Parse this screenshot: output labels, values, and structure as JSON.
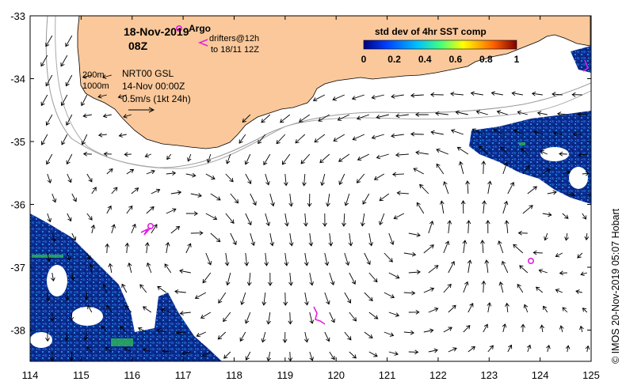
{
  "header": {
    "date": "18-Nov-2019",
    "hour": "08Z"
  },
  "legend": {
    "argo_label": "Argo",
    "drifters_line1": "drifters@12h",
    "drifters_line2": "to 18/11 12Z",
    "argo_color": "#e020e0"
  },
  "contours": {
    "line_200": "200m",
    "line_1000": "1000m"
  },
  "product": {
    "name": "NRT00 GSL",
    "date": "14-Nov 00:00Z",
    "scale": "0.5m/s (1kt 24h)"
  },
  "colorbar": {
    "title": "std dev of 4hr SST comp",
    "ticks": [
      "0",
      "0.2",
      "0.4",
      "0.6",
      "0.8",
      "1"
    ]
  },
  "axes": {
    "lon_ticks": [
      "114",
      "115",
      "116",
      "117",
      "118",
      "119",
      "120",
      "121",
      "122",
      "123",
      "124",
      "125"
    ],
    "lat_ticks": [
      "-33",
      "-34",
      "-35",
      "-36",
      "-37",
      "-38"
    ]
  },
  "credit": "© IMOS 20-Nov-2019 05:07 Hobart",
  "colors": {
    "land": "#fac89a",
    "sst_deep": "#0a2c8c",
    "sst_mid": "#1e6ad2",
    "sst_high": "#2ab05a"
  }
}
